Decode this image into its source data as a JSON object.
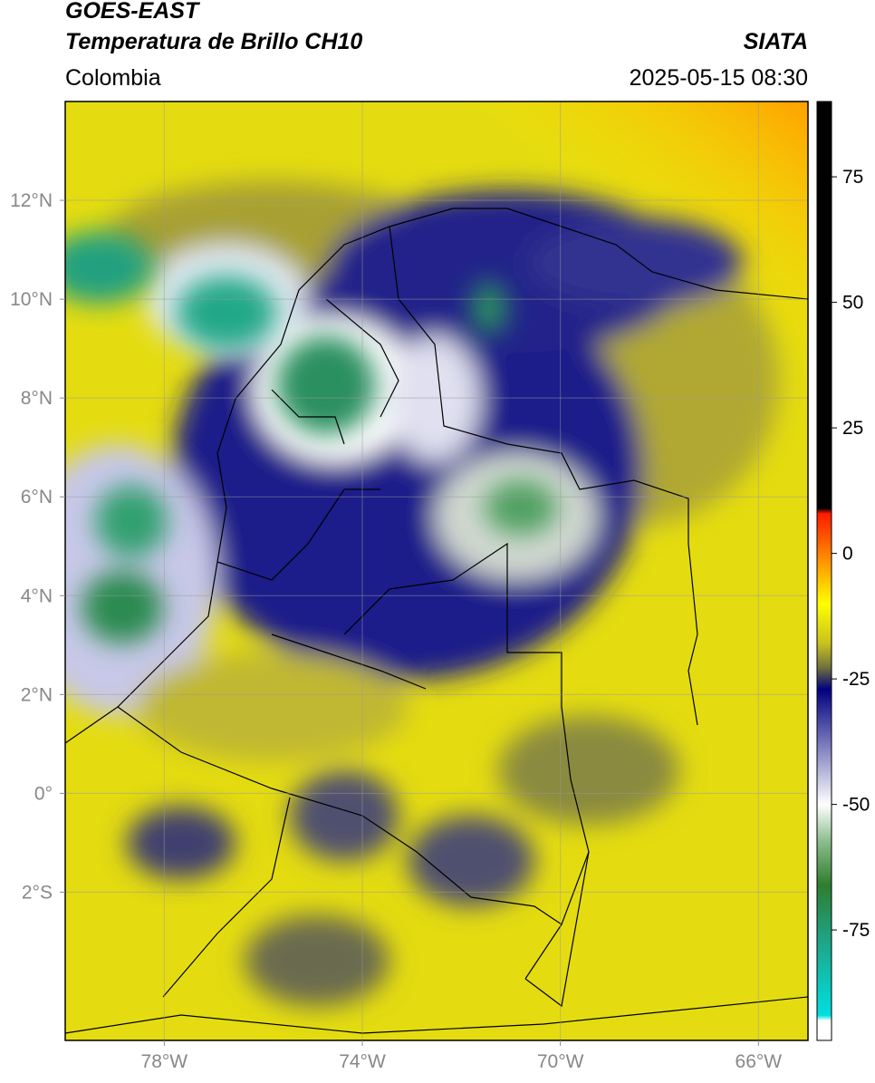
{
  "header": {
    "satellite": "GOES-EAST",
    "product": "Temperatura de Brillo CH10",
    "source": "SIATA",
    "region": "Colombia",
    "datetime": "2025-05-15 08:30"
  },
  "map": {
    "lonlim": [
      -80,
      -65
    ],
    "latlim": [
      -5,
      14
    ],
    "lonticks": [
      {
        "value": -78,
        "label": "78°W"
      },
      {
        "value": -74,
        "label": "74°W"
      },
      {
        "value": -70,
        "label": "70°W"
      },
      {
        "value": -66,
        "label": "66°W"
      }
    ],
    "latticks": [
      {
        "value": 12,
        "label": "12°N"
      },
      {
        "value": 10,
        "label": "10°N"
      },
      {
        "value": 8,
        "label": "8°N"
      },
      {
        "value": 6,
        "label": "6°N"
      },
      {
        "value": 4,
        "label": "4°N"
      },
      {
        "value": 2,
        "label": "2°N"
      },
      {
        "value": 0,
        "label": "0°"
      },
      {
        "value": -2,
        "label": "2°S"
      }
    ],
    "grid": true
  },
  "colorbar": {
    "lim": [
      -97,
      90
    ],
    "ticks": [
      75,
      50,
      25,
      0,
      -25,
      -50,
      -75
    ],
    "stops": [
      {
        "value": 90,
        "color": "#000000"
      },
      {
        "value": 9,
        "color": "#000000"
      },
      {
        "value": 8,
        "color": "#ff1a00"
      },
      {
        "value": 0,
        "color": "#ff8000"
      },
      {
        "value": -10,
        "color": "#ffff00"
      },
      {
        "value": -18,
        "color": "#c8c020"
      },
      {
        "value": -23,
        "color": "#6a6a40"
      },
      {
        "value": -27,
        "color": "#000080"
      },
      {
        "value": -40,
        "color": "#9090c8"
      },
      {
        "value": -50,
        "color": "#ffffff"
      },
      {
        "value": -57,
        "color": "#90c090"
      },
      {
        "value": -66,
        "color": "#2e7d2e"
      },
      {
        "value": -76,
        "color": "#20a080"
      },
      {
        "value": -92,
        "color": "#00e0e0"
      },
      {
        "value": -93,
        "color": "#ffffff"
      },
      {
        "value": -97,
        "color": "#ffffff"
      }
    ]
  }
}
